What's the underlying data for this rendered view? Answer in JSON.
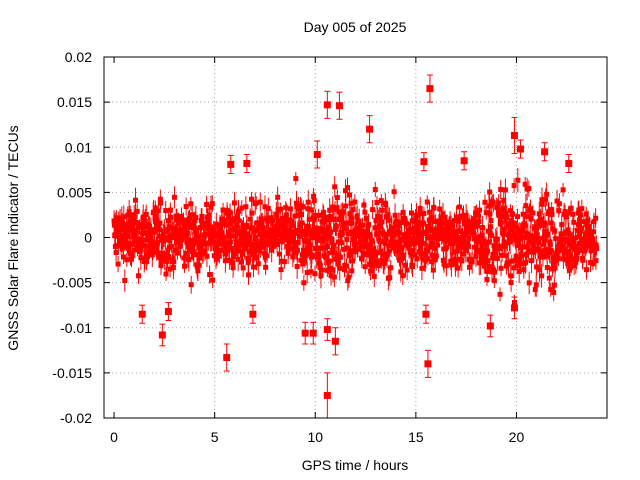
{
  "chart_data": {
    "type": "scatter",
    "title": "Day 005 of 2025",
    "xlabel": "GPS time / hours",
    "ylabel": "GNSS Solar Flare indicator / TECUs",
    "xlim": [
      -0.5,
      24.5
    ],
    "ylim": [
      -0.02,
      0.02
    ],
    "xticks": [
      0,
      5,
      10,
      15,
      20
    ],
    "yticks": [
      -0.02,
      -0.015,
      -0.01,
      -0.005,
      0,
      0.005,
      0.01,
      0.015,
      0.02
    ],
    "xtick_labels": [
      "0",
      "5",
      "10",
      "15",
      "20"
    ],
    "ytick_labels": [
      "-0.02",
      "-0.015",
      "-0.01",
      "-0.005",
      "0",
      "0.005",
      "0.01",
      "0.015",
      "0.02"
    ],
    "grid": true,
    "series_color": "#ff0000",
    "marker": "square",
    "error_bars": true,
    "notable_points": [
      {
        "x": 10.6,
        "y": 0.0147,
        "err": 0.0015
      },
      {
        "x": 11.2,
        "y": 0.0146,
        "err": 0.0015
      },
      {
        "x": 15.7,
        "y": 0.0165,
        "err": 0.0015
      },
      {
        "x": 12.7,
        "y": 0.012,
        "err": 0.0015
      },
      {
        "x": 19.9,
        "y": 0.0113,
        "err": 0.002
      },
      {
        "x": 10.1,
        "y": 0.0092,
        "err": 0.0015
      },
      {
        "x": 10.6,
        "y": -0.0175,
        "err": 0.0025
      },
      {
        "x": 15.6,
        "y": -0.014,
        "err": 0.0015
      },
      {
        "x": 5.6,
        "y": -0.0133,
        "err": 0.0015
      },
      {
        "x": 2.4,
        "y": -0.0108,
        "err": 0.0012
      },
      {
        "x": 9.5,
        "y": -0.0106,
        "err": 0.0012
      },
      {
        "x": 9.9,
        "y": -0.0106,
        "err": 0.0012
      },
      {
        "x": 11.0,
        "y": -0.0115,
        "err": 0.0015
      },
      {
        "x": 10.6,
        "y": -0.0102,
        "err": 0.0012
      },
      {
        "x": 18.7,
        "y": -0.0098,
        "err": 0.0012
      },
      {
        "x": 19.9,
        "y": -0.0078,
        "err": 0.0012
      },
      {
        "x": 1.4,
        "y": -0.0085,
        "err": 0.001
      },
      {
        "x": 2.7,
        "y": -0.0082,
        "err": 0.001
      },
      {
        "x": 6.9,
        "y": -0.0085,
        "err": 0.001
      },
      {
        "x": 15.5,
        "y": -0.0085,
        "err": 0.001
      },
      {
        "x": 15.4,
        "y": 0.0084,
        "err": 0.001
      },
      {
        "x": 17.4,
        "y": 0.0085,
        "err": 0.001
      },
      {
        "x": 6.6,
        "y": 0.0082,
        "err": 0.001
      },
      {
        "x": 5.8,
        "y": 0.0081,
        "err": 0.001
      },
      {
        "x": 22.6,
        "y": 0.0082,
        "err": 0.001
      },
      {
        "x": 21.4,
        "y": 0.0095,
        "err": 0.001
      },
      {
        "x": 20.2,
        "y": 0.0098,
        "err": 0.001
      }
    ]
  }
}
